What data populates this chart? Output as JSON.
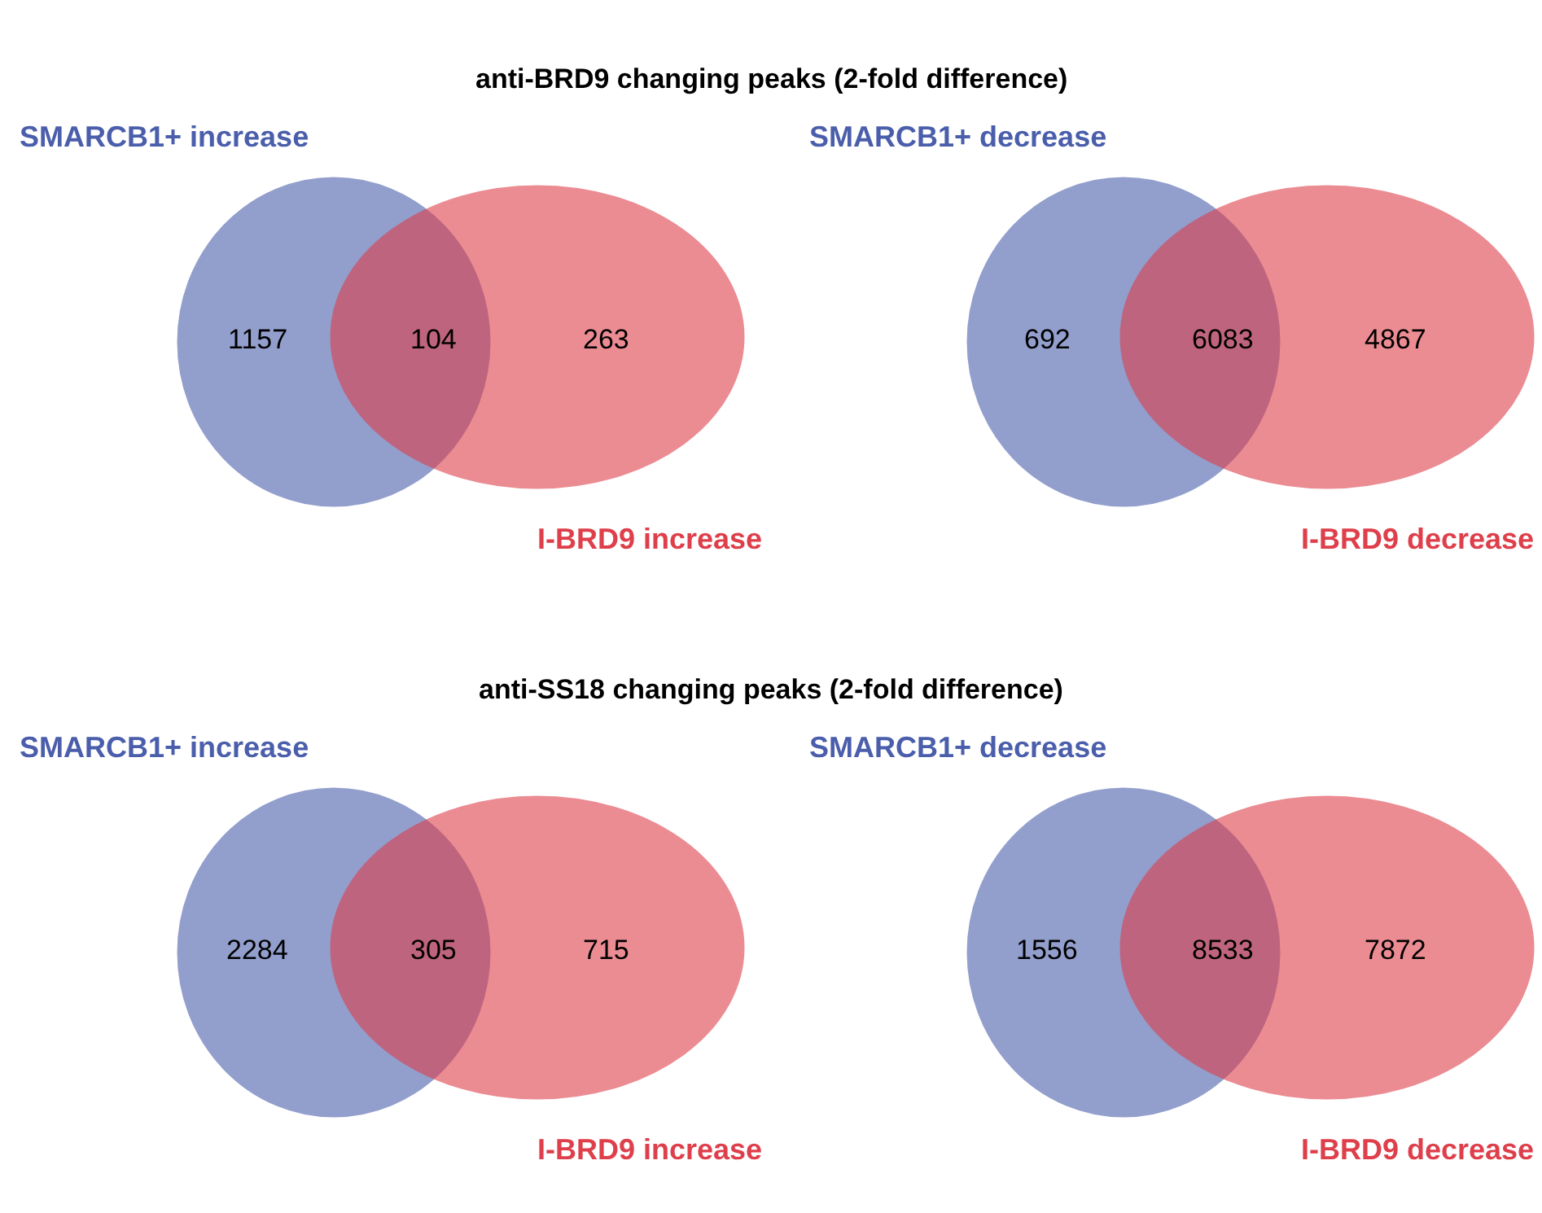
{
  "chart_data": [
    {
      "type": "other",
      "title": "anti-BRD9 changing peaks (2-fold difference)",
      "categories": [
        "SMARCB1+ increase",
        null,
        "I-BRD9 increase"
      ],
      "values": [
        1157,
        104,
        263
      ],
      "data_labels": true,
      "colors": [
        "#4a5eab",
        null,
        "#de3f4b"
      ]
    },
    {
      "type": "other",
      "categories": [
        "SMARCB1+ decrease",
        null,
        "I-BRD9 decrease"
      ],
      "values": [
        692,
        6083,
        4867
      ],
      "data_labels": true,
      "colors": [
        "#4a5eab",
        null,
        "#de3f4b"
      ]
    },
    {
      "type": "other",
      "title": "anti-SS18 changing peaks (2-fold difference)",
      "categories": [
        "SMARCB1+ increase",
        null,
        "I-BRD9 increase"
      ],
      "values": [
        2284,
        305,
        715
      ],
      "data_labels": true,
      "colors": [
        "#4a5eab",
        null,
        "#de3f4b"
      ]
    },
    {
      "type": "other",
      "categories": [
        "SMARCB1+ decrease",
        null,
        "I-BRD9 decrease"
      ],
      "values": [
        1556,
        8533,
        7872
      ],
      "data_labels": true,
      "colors": [
        "#4a5eab",
        null,
        "#de3f4b"
      ]
    }
  ]
}
